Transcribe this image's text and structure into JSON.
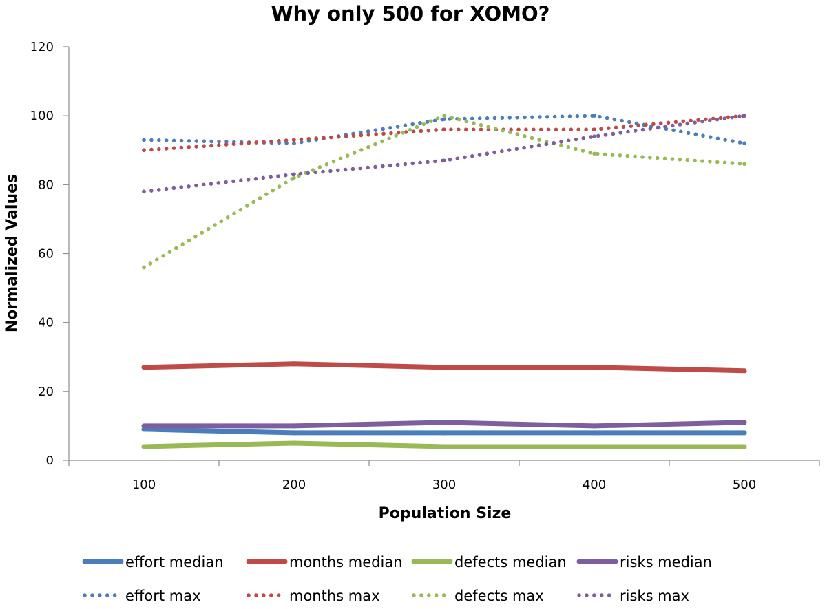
{
  "chart_data": {
    "type": "line",
    "title": "Why only 500 for XOMO?",
    "xlabel": "Population Size",
    "ylabel": "Normalized Values",
    "x": [
      100,
      200,
      300,
      400,
      500
    ],
    "xlim": [
      50,
      550
    ],
    "ylim": [
      0,
      120
    ],
    "xticks": [
      100,
      200,
      300,
      400,
      500
    ],
    "yticks": [
      0,
      20,
      40,
      60,
      80,
      100,
      120
    ],
    "grid": false,
    "legend_position": "bottom",
    "series": [
      {
        "name": "effort median",
        "values": [
          9,
          8,
          8,
          8,
          8
        ],
        "color": "#4a7ebb",
        "style": "solid"
      },
      {
        "name": "months median",
        "values": [
          27,
          28,
          27,
          27,
          26
        ],
        "color": "#be4b48",
        "style": "solid"
      },
      {
        "name": "defects median",
        "values": [
          4,
          5,
          4,
          4,
          4
        ],
        "color": "#98b954",
        "style": "solid"
      },
      {
        "name": "risks median",
        "values": [
          10,
          10,
          11,
          10,
          11
        ],
        "color": "#7d5fa0",
        "style": "solid"
      },
      {
        "name": "effort max",
        "values": [
          93,
          92,
          99,
          100,
          92
        ],
        "color": "#4a7ebb",
        "style": "dotted"
      },
      {
        "name": "months max",
        "values": [
          90,
          93,
          96,
          96,
          100
        ],
        "color": "#be4b48",
        "style": "dotted"
      },
      {
        "name": "defects max",
        "values": [
          56,
          82,
          100,
          89,
          86
        ],
        "color": "#98b954",
        "style": "dotted"
      },
      {
        "name": "risks max",
        "values": [
          78,
          83,
          87,
          94,
          100
        ],
        "color": "#7d5fa0",
        "style": "dotted"
      }
    ]
  }
}
